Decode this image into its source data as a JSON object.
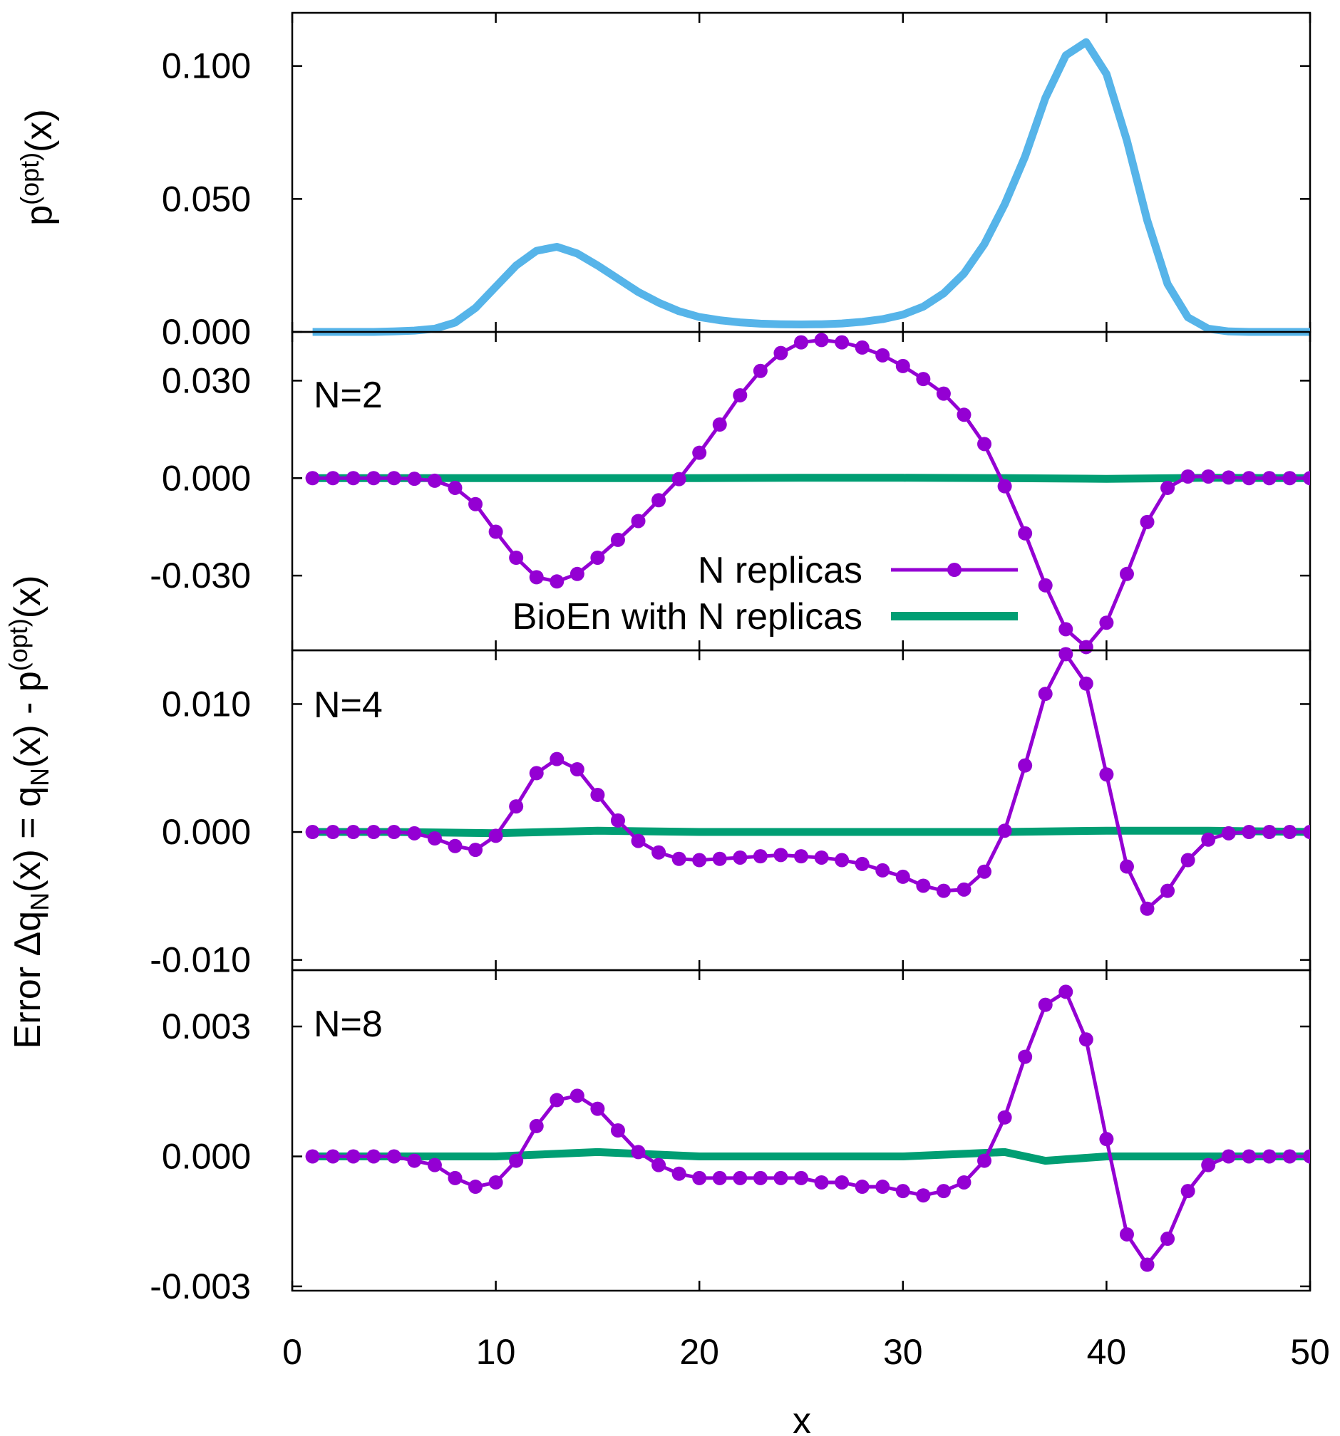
{
  "chart_data": {
    "type": "line",
    "xlabel": "x",
    "xlim": [
      0,
      50
    ],
    "xticks": [
      "0",
      "10",
      "20",
      "30",
      "40",
      "50"
    ],
    "legend": {
      "placement": "inside panel N=2, lower-right",
      "entries": [
        "N replicas",
        "BioEn with N replicas"
      ]
    },
    "colors": {
      "popt": "#56B4E9",
      "replicas": "#9400D3",
      "bioen": "#009E73"
    },
    "ylabel_shared": {
      "parts": [
        "Error ",
        "Δq",
        "N",
        "(x) = q",
        "N",
        "(x) - p",
        "(opt)",
        "(x)"
      ]
    },
    "panels": [
      {
        "id": "popt",
        "ylabel_parts": [
          "p",
          "(opt)",
          "(x)"
        ],
        "ylim": [
          0,
          0.12
        ],
        "yticks": [
          {
            "v": 0.0,
            "label": "0.000"
          },
          {
            "v": 0.05,
            "label": "0.050"
          },
          {
            "v": 0.1,
            "label": "0.100"
          }
        ],
        "series": [
          {
            "key": "popt",
            "x": [
              1,
              2,
              3,
              4,
              5,
              6,
              7,
              8,
              9,
              10,
              11,
              12,
              13,
              14,
              15,
              16,
              17,
              18,
              19,
              20,
              21,
              22,
              23,
              24,
              25,
              26,
              27,
              28,
              29,
              30,
              31,
              32,
              33,
              34,
              35,
              36,
              37,
              38,
              39,
              40,
              41,
              42,
              43,
              44,
              45,
              46,
              47,
              48,
              49,
              50
            ],
            "y": [
              0.0,
              0.0,
              0.0,
              0.0,
              0.0002,
              0.0005,
              0.0012,
              0.0035,
              0.009,
              0.017,
              0.025,
              0.0305,
              0.032,
              0.0295,
              0.025,
              0.02,
              0.015,
              0.011,
              0.0078,
              0.0056,
              0.0044,
              0.0036,
              0.0031,
              0.0029,
              0.0028,
              0.0029,
              0.0032,
              0.0038,
              0.0048,
              0.0065,
              0.0095,
              0.0145,
              0.022,
              0.033,
              0.048,
              0.066,
              0.088,
              0.104,
              0.109,
              0.097,
              0.072,
              0.042,
              0.018,
              0.0055,
              0.0012,
              0.0002,
              0.0,
              0.0,
              0.0,
              0.0
            ]
          }
        ]
      },
      {
        "id": "n2",
        "label": "N=2",
        "ylim": [
          -0.053,
          0.045
        ],
        "yticks": [
          {
            "v": -0.03,
            "label": "-0.030"
          },
          {
            "v": 0.0,
            "label": "0.000"
          },
          {
            "v": 0.03,
            "label": "0.030"
          }
        ],
        "series": [
          {
            "key": "replicas",
            "x": [
              1,
              2,
              3,
              4,
              5,
              6,
              7,
              8,
              9,
              10,
              11,
              12,
              13,
              14,
              15,
              16,
              17,
              18,
              19,
              20,
              21,
              22,
              23,
              24,
              25,
              26,
              27,
              28,
              29,
              30,
              31,
              32,
              33,
              34,
              35,
              36,
              37,
              38,
              39,
              40,
              41,
              42,
              43,
              44,
              45,
              46,
              47,
              48,
              49,
              50
            ],
            "y": [
              0.0,
              0.0,
              0.0,
              0.0,
              0.0,
              -0.0002,
              -0.0008,
              -0.003,
              -0.008,
              -0.0165,
              -0.0245,
              -0.0305,
              -0.0318,
              -0.0295,
              -0.0245,
              -0.019,
              -0.0132,
              -0.0068,
              -0.0003,
              0.0078,
              0.0165,
              0.0255,
              0.033,
              0.0385,
              0.0418,
              0.0425,
              0.0418,
              0.0402,
              0.0378,
              0.0345,
              0.0305,
              0.026,
              0.0195,
              0.0105,
              -0.0025,
              -0.017,
              -0.033,
              -0.0465,
              -0.052,
              -0.0445,
              -0.0295,
              -0.0135,
              -0.003,
              0.0005,
              0.0005,
              0.0002,
              0.0,
              0.0,
              0.0,
              0.0
            ]
          },
          {
            "key": "bioen",
            "x": [
              1,
              5,
              10,
              15,
              20,
              25,
              30,
              35,
              40,
              45,
              50
            ],
            "y": [
              0.0,
              0.0,
              0.0,
              0.0,
              0.0,
              0.0001,
              0.0001,
              0.0,
              -0.0002,
              0.0001,
              0.0
            ]
          }
        ]
      },
      {
        "id": "n4",
        "label": "N=4",
        "ylim": [
          -0.0108,
          0.0142
        ],
        "yticks": [
          {
            "v": -0.01,
            "label": "-0.010"
          },
          {
            "v": 0.0,
            "label": "0.000"
          },
          {
            "v": 0.01,
            "label": "0.010"
          }
        ],
        "series": [
          {
            "key": "replicas",
            "x": [
              1,
              2,
              3,
              4,
              5,
              6,
              7,
              8,
              9,
              10,
              11,
              12,
              13,
              14,
              15,
              16,
              17,
              18,
              19,
              20,
              21,
              22,
              23,
              24,
              25,
              26,
              27,
              28,
              29,
              30,
              31,
              32,
              33,
              34,
              35,
              36,
              37,
              38,
              39,
              40,
              41,
              42,
              43,
              44,
              45,
              46,
              47,
              48,
              49,
              50
            ],
            "y": [
              0.0,
              0.0,
              0.0,
              0.0,
              0.0,
              -0.0001,
              -0.0005,
              -0.0011,
              -0.0014,
              -0.0003,
              0.002,
              0.0046,
              0.0057,
              0.0049,
              0.0029,
              0.0009,
              -0.0007,
              -0.0016,
              -0.0021,
              -0.0022,
              -0.0021,
              -0.002,
              -0.0019,
              -0.0018,
              -0.0019,
              -0.002,
              -0.0022,
              -0.0025,
              -0.003,
              -0.0035,
              -0.0042,
              -0.0046,
              -0.0045,
              -0.0031,
              0.0001,
              0.0052,
              0.0108,
              0.0139,
              0.0116,
              0.0045,
              -0.0027,
              -0.006,
              -0.0046,
              -0.0022,
              -0.0006,
              -0.0001,
              0.0,
              0.0,
              0.0,
              0.0
            ]
          },
          {
            "key": "bioen",
            "x": [
              1,
              5,
              10,
              15,
              20,
              25,
              30,
              35,
              40,
              45,
              50
            ],
            "y": [
              0.0,
              0.0,
              -0.0001,
              0.0001,
              0.0,
              0.0,
              0.0,
              0.0,
              0.0001,
              0.0001,
              0.0
            ]
          }
        ]
      },
      {
        "id": "n8",
        "label": "N=8",
        "ylim": [
          -0.0031,
          0.0043
        ],
        "yticks": [
          {
            "v": -0.003,
            "label": "-0.003"
          },
          {
            "v": 0.0,
            "label": "0.000"
          },
          {
            "v": 0.003,
            "label": "0.003"
          }
        ],
        "series": [
          {
            "key": "replicas",
            "x": [
              1,
              2,
              3,
              4,
              5,
              6,
              7,
              8,
              9,
              10,
              11,
              12,
              13,
              14,
              15,
              16,
              17,
              18,
              19,
              20,
              21,
              22,
              23,
              24,
              25,
              26,
              27,
              28,
              29,
              30,
              31,
              32,
              33,
              34,
              35,
              36,
              37,
              38,
              39,
              40,
              41,
              42,
              43,
              44,
              45,
              46,
              47,
              48,
              49,
              50
            ],
            "y": [
              0.0,
              0.0,
              0.0,
              0.0,
              0.0,
              -0.0001,
              -0.0002,
              -0.0005,
              -0.0007,
              -0.0006,
              -0.0001,
              0.0007,
              0.0013,
              0.0014,
              0.0011,
              0.0006,
              0.0001,
              -0.0002,
              -0.0004,
              -0.0005,
              -0.0005,
              -0.0005,
              -0.0005,
              -0.0005,
              -0.0005,
              -0.0006,
              -0.0006,
              -0.0007,
              -0.0007,
              -0.0008,
              -0.0009,
              -0.0008,
              -0.0006,
              -0.0001,
              0.0009,
              0.0023,
              0.0035,
              0.0038,
              0.0027,
              0.0004,
              -0.0018,
              -0.0025,
              -0.0019,
              -0.0008,
              -0.0002,
              0.0,
              0.0,
              0.0,
              0.0,
              0.0
            ]
          },
          {
            "key": "bioen",
            "x": [
              1,
              5,
              10,
              15,
              20,
              25,
              30,
              35,
              36,
              37,
              40,
              45,
              50
            ],
            "y": [
              0.0,
              0.0,
              0.0,
              0.0001,
              0.0,
              0.0,
              0.0,
              0.0001,
              0.0,
              -0.0001,
              0.0,
              0.0,
              0.0
            ]
          }
        ]
      }
    ]
  }
}
